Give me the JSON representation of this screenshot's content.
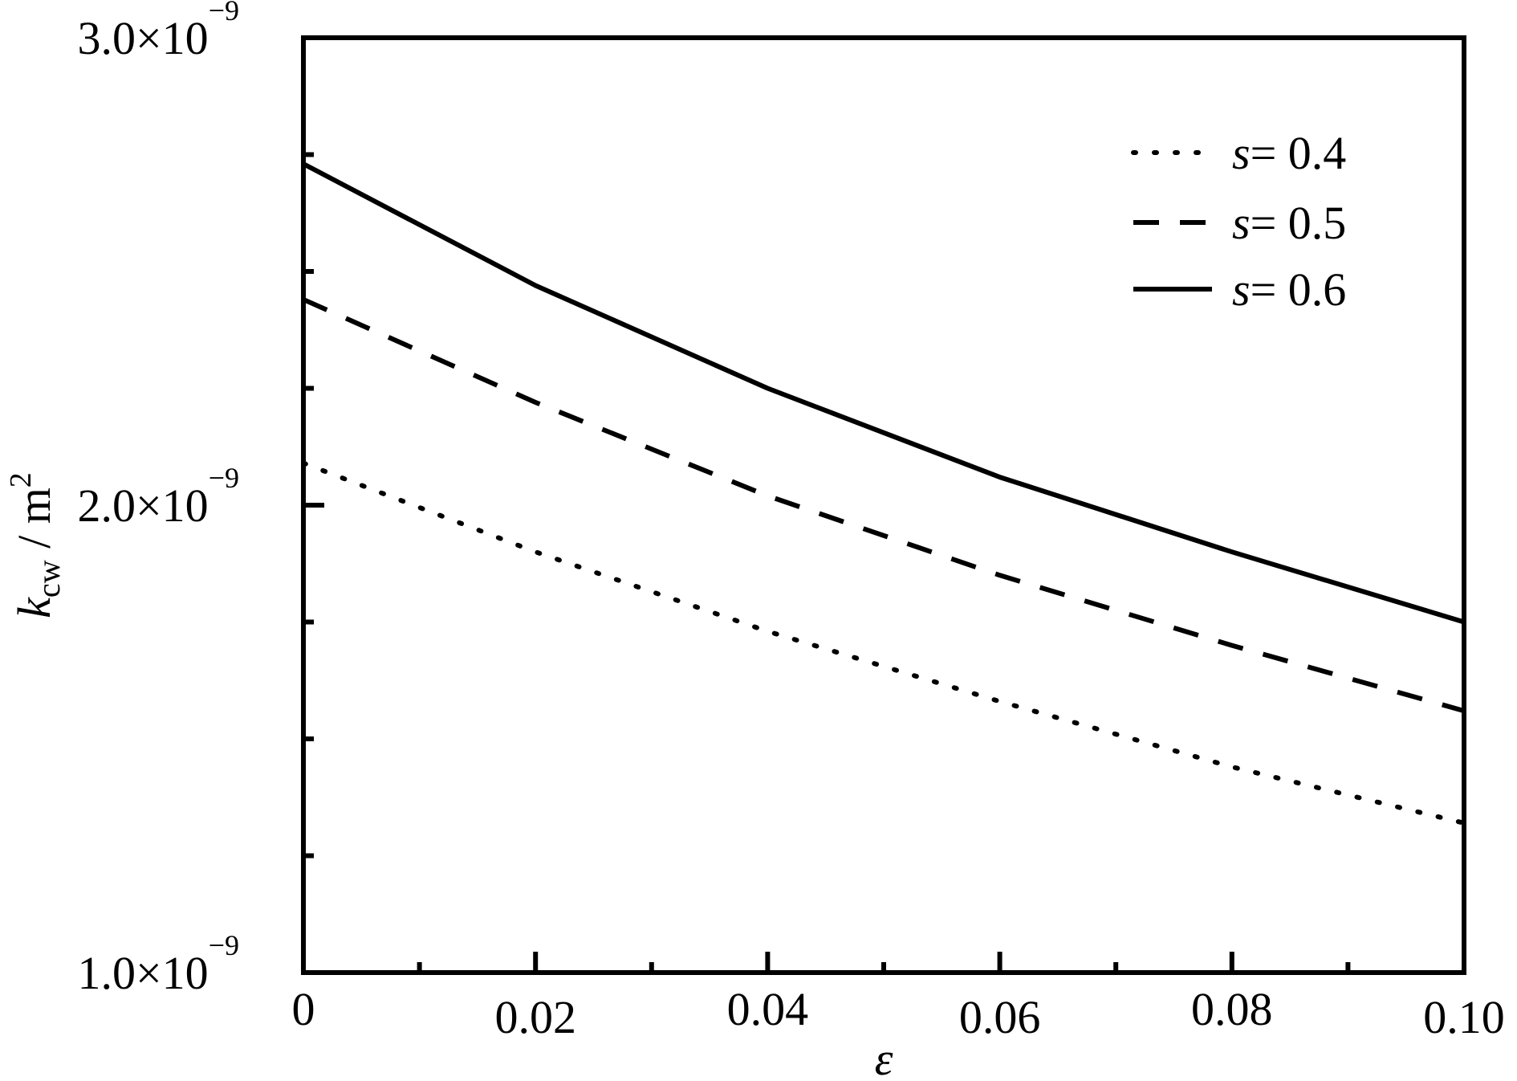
{
  "chart_data": {
    "type": "line",
    "xlabel": "ε",
    "ylabel": {
      "symbol": "k",
      "subscript": "cw",
      "unit": " / m",
      "unit_exp": "2"
    },
    "xlim": [
      0,
      0.1
    ],
    "ylim": [
      1e-09,
      3e-09
    ],
    "x_ticks": [
      {
        "value": 0,
        "label": "0"
      },
      {
        "value": 0.02,
        "label": "0.02"
      },
      {
        "value": 0.04,
        "label": "0.04"
      },
      {
        "value": 0.06,
        "label": "0.06"
      },
      {
        "value": 0.08,
        "label": "0.08"
      },
      {
        "value": 0.1,
        "label": "0.10"
      }
    ],
    "x_minor_ticks": [
      0.01,
      0.03,
      0.05,
      0.07,
      0.09
    ],
    "y_ticks": [
      {
        "value": 1e-09,
        "mantissa": "1.0×10",
        "exponent": "−9"
      },
      {
        "value": 2e-09,
        "mantissa": "2.0×10",
        "exponent": "−9"
      },
      {
        "value": 3e-09,
        "mantissa": "3.0×10",
        "exponent": "−9"
      }
    ],
    "y_minor_ticks": [
      1.25e-09,
      1.5e-09,
      1.75e-09,
      2.25e-09,
      2.5e-09,
      2.75e-09
    ],
    "legend_position": "top-right",
    "grid": false,
    "x": [
      0,
      0.02,
      0.04,
      0.06,
      0.08,
      0.1
    ],
    "series": [
      {
        "name": "s = 0.4",
        "legend_var": "s",
        "legend_value": "= 0.4",
        "style": "dotted",
        "values": [
          2.09e-09,
          1.9e-09,
          1.73e-09,
          1.58e-09,
          1.44e-09,
          1.32e-09
        ]
      },
      {
        "name": "s = 0.5",
        "legend_var": "s",
        "legend_value": "= 0.5",
        "style": "dashed",
        "values": [
          2.44e-09,
          2.22e-09,
          2.02e-09,
          1.85e-09,
          1.7e-09,
          1.56e-09
        ]
      },
      {
        "name": "s = 0.6",
        "legend_var": "s",
        "legend_value": "= 0.6",
        "style": "solid",
        "values": [
          2.73e-09,
          2.47e-09,
          2.25e-09,
          2.06e-09,
          1.9e-09,
          1.75e-09
        ]
      }
    ],
    "line_color": "#000000"
  }
}
